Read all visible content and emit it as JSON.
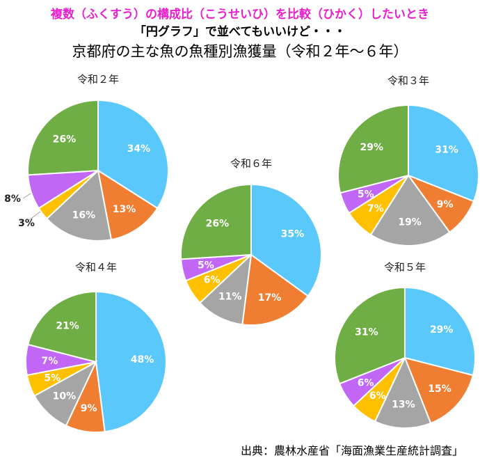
{
  "header": {
    "line1": "複数（ふくすう）の構成比（こうせいひ）を比較（ひかく）したいとき",
    "line2": "「円グラフ」で並べてもいいけど・・・",
    "title": "京都府の主な魚の魚種別漁獲量（令和２年〜６年）"
  },
  "source": "出典：農林水産省「海面漁業生産統計調査」",
  "colors": [
    "#5bc8fb",
    "#ef7d32",
    "#a5a5a5",
    "#ffc001",
    "#c267f5",
    "#6fad45"
  ],
  "chart_data": [
    {
      "type": "pie",
      "title": "令和２年",
      "values": [
        34,
        13,
        16,
        3,
        8,
        26
      ],
      "labels": [
        "34%",
        "13%",
        "16%",
        "3%",
        "8%",
        "26%"
      ]
    },
    {
      "type": "pie",
      "title": "令和３年",
      "values": [
        31,
        9,
        19,
        7,
        5,
        29
      ],
      "labels": [
        "31%",
        "9%",
        "19%",
        "7%",
        "5%",
        "29%"
      ]
    },
    {
      "type": "pie",
      "title": "令和６年",
      "values": [
        35,
        17,
        11,
        6,
        5,
        26
      ],
      "labels": [
        "35%",
        "17%",
        "11%",
        "6%",
        "5%",
        "26%"
      ]
    },
    {
      "type": "pie",
      "title": "令和４年",
      "values": [
        48,
        9,
        10,
        5,
        7,
        21
      ],
      "labels": [
        "48%",
        "9%",
        "10%",
        "5%",
        "7%",
        "21%"
      ]
    },
    {
      "type": "pie",
      "title": "令和５年",
      "values": [
        29,
        15,
        13,
        6,
        6,
        31
      ],
      "labels": [
        "29%",
        "15%",
        "13%",
        "6%",
        "6%",
        "31%"
      ]
    }
  ]
}
